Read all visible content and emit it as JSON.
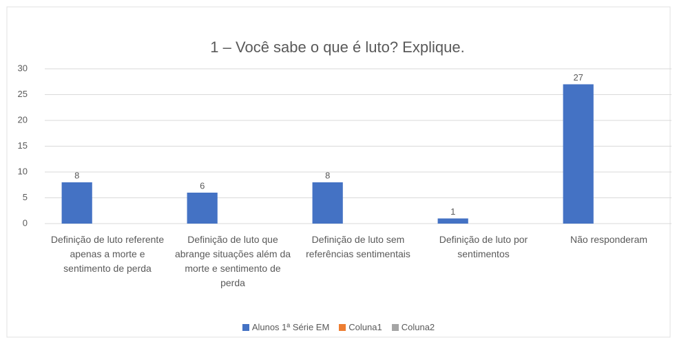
{
  "chart_data": {
    "type": "bar",
    "title": "1 – Você sabe o que é luto? Explique.",
    "categories": [
      "Definição de luto referente apenas a morte e sentimento de perda",
      "Definição de luto que abrange situações além da morte e sentimento de perda",
      "Definição de luto sem referências sentimentais",
      "Definição de luto por sentimentos",
      "Não responderam"
    ],
    "series": [
      {
        "name": "Alunos 1ª Série EM",
        "color": "#4472c4",
        "values": [
          8,
          6,
          8,
          1,
          27
        ]
      },
      {
        "name": "Coluna1",
        "color": "#ed7d31",
        "values": [
          null,
          null,
          null,
          null,
          null
        ]
      },
      {
        "name": "Coluna2",
        "color": "#a5a5a5",
        "values": [
          null,
          null,
          null,
          null,
          null
        ]
      }
    ],
    "ylim": [
      0,
      30
    ],
    "yticks": [
      0,
      5,
      10,
      15,
      20,
      25,
      30
    ],
    "grid": true,
    "legend": "bottom",
    "data_labels": true
  }
}
